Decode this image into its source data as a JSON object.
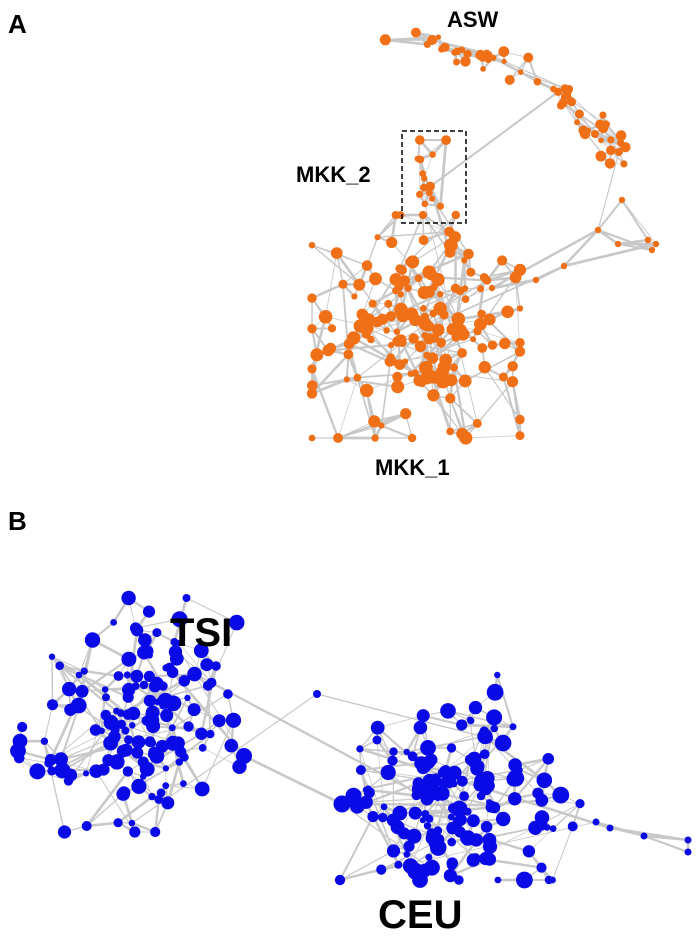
{
  "panels": {
    "a": {
      "letter": "A",
      "node_color": "#f07018",
      "clusters": [
        {
          "id": "ASW",
          "label": "ASW"
        },
        {
          "id": "MKK_2",
          "label": "MKK_2"
        },
        {
          "id": "MKK_1",
          "label": "MKK_1"
        }
      ],
      "highlight_box_cluster": "MKK_2"
    },
    "b": {
      "letter": "B",
      "node_color": "#0a0ae6",
      "clusters": [
        {
          "id": "TSI",
          "label": "TSI"
        },
        {
          "id": "CEU",
          "label": "CEU"
        }
      ]
    }
  },
  "edge_color": "#c8c8c8"
}
